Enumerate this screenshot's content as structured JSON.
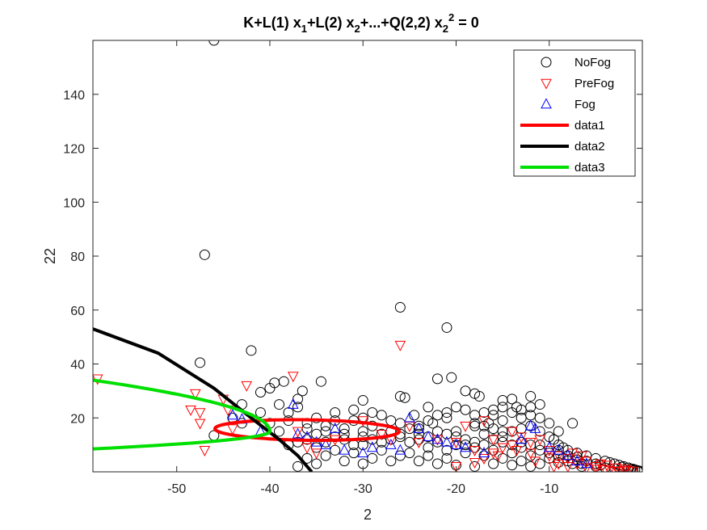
{
  "chart_data": {
    "type": "scatter",
    "title": "K+L(1) x₁+L(2) x₂+...+Q(2,2) x₂² = 0",
    "title_parts": {
      "main": "K+L(1) x",
      "sub1": "1",
      "mid1": "+L(2) x",
      "sub2": "2",
      "mid2": "+...+Q(2,2) x",
      "sub3": "2",
      "sup": "2",
      "end": " = 0"
    },
    "xlabel": "2",
    "ylabel": "22",
    "xlim": [
      -59,
      0
    ],
    "ylim": [
      0,
      160
    ],
    "xticks": [
      -50,
      -40,
      -30,
      -20,
      -10
    ],
    "yticks": [
      20,
      40,
      60,
      80,
      100,
      120,
      140
    ],
    "xtick_labels": [
      "-50",
      "-40",
      "-30",
      "-20",
      "-10"
    ],
    "ytick_labels": [
      "20",
      "40",
      "60",
      "80",
      "100",
      "120",
      "140"
    ],
    "grid": false,
    "legend_position": "top-right",
    "legend": [
      "NoFog",
      "PreFog",
      "Fog",
      "data1",
      "data2",
      "data3"
    ],
    "colors": {
      "NoFog": "#000000",
      "PreFog": "#ff0000",
      "Fog": "#0000ff",
      "data1": "#ff0000",
      "data2": "#000000",
      "data3": "#00e000"
    },
    "series": [
      {
        "name": "NoFog",
        "marker": "circle",
        "points": [
          [
            -46,
            160
          ],
          [
            -47,
            80.5
          ],
          [
            -26,
            61
          ],
          [
            -21,
            53.5
          ],
          [
            -42,
            45
          ],
          [
            -47.5,
            40.5
          ],
          [
            -39.5,
            33
          ],
          [
            -38.5,
            33.5
          ],
          [
            -40,
            31
          ],
          [
            -34.5,
            33.5
          ],
          [
            -41,
            29.5
          ],
          [
            -36.5,
            30
          ],
          [
            -30,
            26.5
          ],
          [
            -26,
            28
          ],
          [
            -25.5,
            27.5
          ],
          [
            -22,
            34.5
          ],
          [
            -20.5,
            35
          ],
          [
            -19,
            30
          ],
          [
            -18,
            29
          ],
          [
            -17.5,
            28
          ],
          [
            -15,
            26.5
          ],
          [
            -14,
            27
          ],
          [
            -12,
            28
          ],
          [
            -11,
            25
          ],
          [
            -13.5,
            24
          ],
          [
            -16,
            23
          ],
          [
            -18,
            21
          ],
          [
            -21,
            22
          ],
          [
            -23,
            24
          ],
          [
            -24.5,
            21
          ],
          [
            -22.5,
            18
          ],
          [
            -24,
            16
          ],
          [
            -20,
            15
          ],
          [
            -18,
            17
          ],
          [
            -16.5,
            18
          ],
          [
            -15,
            19
          ],
          [
            -13,
            20
          ],
          [
            -12,
            17
          ],
          [
            -11,
            15
          ],
          [
            -10,
            13
          ],
          [
            -9.5,
            12
          ],
          [
            -9,
            10
          ],
          [
            -8.5,
            9
          ],
          [
            -8,
            8
          ],
          [
            -7,
            7
          ],
          [
            -6,
            6
          ],
          [
            -5,
            5
          ],
          [
            -4,
            4
          ],
          [
            -3.5,
            3.5
          ],
          [
            -3,
            3
          ],
          [
            -2.5,
            2.5
          ],
          [
            -2,
            2
          ],
          [
            -1.5,
            1.5
          ],
          [
            -1,
            1
          ],
          [
            -0.8,
            0.8
          ],
          [
            -0.5,
            0.5
          ],
          [
            -0.3,
            0.3
          ],
          [
            -0.2,
            0.2
          ],
          [
            -1.2,
            1.1
          ],
          [
            -2.2,
            1.8
          ],
          [
            -4.5,
            2.5
          ],
          [
            -6.5,
            3
          ],
          [
            -8,
            4
          ],
          [
            -10,
            5
          ],
          [
            -12,
            6
          ],
          [
            -14,
            7
          ],
          [
            -16,
            8
          ],
          [
            -18,
            9
          ],
          [
            -20,
            10
          ],
          [
            -22,
            11
          ],
          [
            -24,
            12
          ],
          [
            -26,
            13
          ],
          [
            -28,
            14
          ],
          [
            -30,
            15
          ],
          [
            -32,
            16
          ],
          [
            -34,
            17
          ],
          [
            -36,
            18
          ],
          [
            -38,
            19
          ],
          [
            -35,
            20
          ],
          [
            -33,
            22
          ],
          [
            -31,
            19
          ],
          [
            -29,
            17
          ],
          [
            -27,
            15
          ],
          [
            -25,
            11
          ],
          [
            -23,
            9
          ],
          [
            -21,
            8
          ],
          [
            -19,
            7
          ],
          [
            -17,
            6
          ],
          [
            -15,
            5
          ],
          [
            -13,
            4
          ],
          [
            -11,
            3
          ],
          [
            -9,
            3.5
          ],
          [
            -7,
            4.5
          ],
          [
            -5,
            3
          ],
          [
            -30,
            10
          ],
          [
            -28,
            8
          ],
          [
            -26,
            6
          ],
          [
            -24,
            4
          ],
          [
            -22,
            3
          ],
          [
            -20,
            2.5
          ],
          [
            -18,
            2
          ],
          [
            -16,
            3
          ],
          [
            -14,
            2.5
          ],
          [
            -12,
            2
          ],
          [
            -36,
            5
          ],
          [
            -34,
            6
          ],
          [
            -32,
            4
          ],
          [
            -30,
            3
          ],
          [
            -37,
            2
          ],
          [
            -35,
            3
          ],
          [
            -33,
            8
          ],
          [
            -31,
            7
          ],
          [
            -29,
            5
          ],
          [
            -27,
            4
          ],
          [
            -25,
            7
          ],
          [
            -23,
            6
          ],
          [
            -21,
            5
          ],
          [
            -19,
            12
          ],
          [
            -17,
            14
          ],
          [
            -15,
            13
          ],
          [
            -13,
            11
          ],
          [
            -11,
            10
          ],
          [
            -9,
            8
          ],
          [
            -8,
            6
          ],
          [
            -7,
            5.5
          ],
          [
            -6,
            4
          ],
          [
            -5,
            2
          ],
          [
            -4,
            1.5
          ],
          [
            -3,
            1.2
          ],
          [
            -2,
            0.8
          ],
          [
            -1,
            0.5
          ],
          [
            -0.5,
            0.2
          ],
          [
            -46,
            13.5
          ],
          [
            -44,
            20
          ],
          [
            -43,
            18
          ],
          [
            -38,
            22
          ],
          [
            -37,
            24
          ],
          [
            -36,
            16
          ],
          [
            -35,
            14
          ],
          [
            -34,
            11
          ],
          [
            -33,
            13
          ],
          [
            -32,
            12
          ],
          [
            -31,
            10
          ],
          [
            -30,
            20
          ],
          [
            -29,
            22
          ],
          [
            -28,
            21
          ],
          [
            -27,
            19
          ],
          [
            -26,
            18
          ],
          [
            -25,
            16
          ],
          [
            -24,
            14
          ],
          [
            -23,
            13
          ],
          [
            -22,
            15
          ],
          [
            -21,
            14
          ],
          [
            -20,
            13
          ],
          [
            -19,
            10
          ],
          [
            -18,
            11
          ],
          [
            -17,
            10
          ],
          [
            -16,
            12
          ],
          [
            -15,
            11
          ],
          [
            -14,
            10
          ],
          [
            -13,
            9
          ],
          [
            -12,
            10
          ],
          [
            -11,
            8
          ],
          [
            -10,
            7
          ],
          [
            -9,
            6
          ],
          [
            -8.5,
            5
          ],
          [
            -7.5,
            3
          ],
          [
            -6.5,
            2
          ],
          [
            -14,
            22
          ],
          [
            -13,
            23
          ],
          [
            -12,
            24
          ],
          [
            -15,
            24
          ],
          [
            -16,
            21
          ],
          [
            -17,
            22
          ],
          [
            -19,
            23
          ],
          [
            -20,
            24
          ],
          [
            -21,
            20
          ],
          [
            -22,
            21
          ],
          [
            -23,
            19
          ],
          [
            -24,
            17
          ],
          [
            -26,
            14
          ],
          [
            -27,
            12
          ],
          [
            -28,
            11
          ],
          [
            -29,
            12
          ],
          [
            -30,
            13
          ],
          [
            -32,
            14
          ],
          [
            -34,
            15
          ],
          [
            -35,
            9
          ],
          [
            -36,
            12
          ],
          [
            -37,
            11
          ],
          [
            -38,
            10
          ],
          [
            -39,
            15
          ],
          [
            -40,
            18
          ],
          [
            -41,
            22
          ],
          [
            -43,
            25
          ],
          [
            -39,
            25
          ],
          [
            -37,
            27
          ],
          [
            -33,
            19
          ],
          [
            -31,
            23
          ],
          [
            -10,
            18
          ],
          [
            -9,
            15
          ],
          [
            -7.5,
            18
          ],
          [
            -11,
            20
          ],
          [
            -12,
            21
          ],
          [
            -13,
            16
          ],
          [
            -14,
            15
          ],
          [
            -15,
            15
          ],
          [
            -16,
            16
          ],
          [
            -17,
            17
          ],
          [
            -18,
            18
          ]
        ]
      },
      {
        "name": "PreFog",
        "marker": "triangle-down",
        "points": [
          [
            -58.5,
            34.5
          ],
          [
            -37.5,
            35.5
          ],
          [
            -42.5,
            32
          ],
          [
            -26,
            47
          ],
          [
            -48,
            29
          ],
          [
            -48.5,
            23
          ],
          [
            -47.5,
            22
          ],
          [
            -47,
            8
          ],
          [
            -45,
            27
          ],
          [
            -44.5,
            23
          ],
          [
            -47.5,
            18
          ],
          [
            -44,
            16
          ],
          [
            -37,
            15
          ],
          [
            -36,
            9
          ],
          [
            -35,
            7
          ],
          [
            -33,
            12
          ],
          [
            -30,
            19
          ],
          [
            -28,
            14
          ],
          [
            -27,
            12
          ],
          [
            -25,
            17
          ],
          [
            -24,
            11
          ],
          [
            -22,
            12
          ],
          [
            -20,
            11
          ],
          [
            -18,
            8
          ],
          [
            -17,
            5
          ],
          [
            -16,
            7
          ],
          [
            -15,
            9
          ],
          [
            -14,
            10
          ],
          [
            -13,
            13
          ],
          [
            -12,
            11
          ],
          [
            -11,
            12
          ],
          [
            -10,
            8
          ],
          [
            -9,
            6
          ],
          [
            -8,
            5
          ],
          [
            -7,
            3
          ],
          [
            -6,
            4
          ],
          [
            -5,
            2
          ],
          [
            -4,
            1
          ],
          [
            -3.5,
            0.5
          ],
          [
            -3,
            0.3
          ],
          [
            -2.5,
            0.2
          ],
          [
            -2,
            0.5
          ],
          [
            -1.5,
            0.4
          ],
          [
            -1,
            0.3
          ],
          [
            -20,
            2
          ],
          [
            -18,
            3.5
          ],
          [
            -16,
            12
          ],
          [
            -14,
            15
          ],
          [
            -12,
            7
          ],
          [
            -10,
            6
          ],
          [
            -9,
            3
          ],
          [
            -8,
            2
          ],
          [
            -6,
            1.5
          ],
          [
            -5,
            1
          ],
          [
            -19,
            17
          ],
          [
            -17,
            19
          ],
          [
            -15.5,
            6
          ],
          [
            -13.5,
            8
          ],
          [
            -11.5,
            4
          ],
          [
            -9.5,
            2
          ],
          [
            -7.5,
            7
          ],
          [
            -6.5,
            6
          ],
          [
            -4.5,
            3
          ],
          [
            -3.8,
            2.5
          ],
          [
            -2.8,
            1.5
          ],
          [
            -1.8,
            1
          ]
        ]
      },
      {
        "name": "Fog",
        "marker": "triangle-up",
        "points": [
          [
            -37.5,
            25
          ],
          [
            -43,
            19.5
          ],
          [
            -44,
            21
          ],
          [
            -41,
            15
          ],
          [
            -37,
            14
          ],
          [
            -36,
            13
          ],
          [
            -35,
            11
          ],
          [
            -34,
            10
          ],
          [
            -32,
            8
          ],
          [
            -30,
            7
          ],
          [
            -25,
            20
          ],
          [
            -24,
            16
          ],
          [
            -23,
            13
          ],
          [
            -22,
            12
          ],
          [
            -21,
            11
          ],
          [
            -20,
            10
          ],
          [
            -12,
            17
          ],
          [
            -11.5,
            16
          ],
          [
            -10,
            9
          ],
          [
            -9,
            8
          ],
          [
            -8,
            6
          ],
          [
            -7,
            4
          ],
          [
            -6,
            3
          ],
          [
            -33,
            16
          ],
          [
            -29,
            9
          ],
          [
            -27,
            10
          ],
          [
            -26,
            8
          ],
          [
            -19,
            9
          ],
          [
            -17,
            7
          ],
          [
            -13,
            12
          ]
        ]
      }
    ],
    "curves": [
      {
        "name": "data1",
        "kind": "ellipse",
        "center": [
          -36,
          15.5
        ],
        "semi_axes": [
          10,
          3.8
        ],
        "angle_deg": -8
      },
      {
        "name": "data2",
        "kind": "line",
        "points": [
          [
            -59,
            53
          ],
          [
            -52,
            44
          ],
          [
            -46,
            31
          ],
          [
            -42,
            20
          ],
          [
            -39,
            12
          ],
          [
            -37,
            6
          ],
          [
            -35.5,
            0
          ]
        ]
      },
      {
        "name": "data3",
        "kind": "parabola",
        "vertex": [
          -40,
          15
        ],
        "y_range": [
          8.5,
          34
        ]
      }
    ]
  }
}
